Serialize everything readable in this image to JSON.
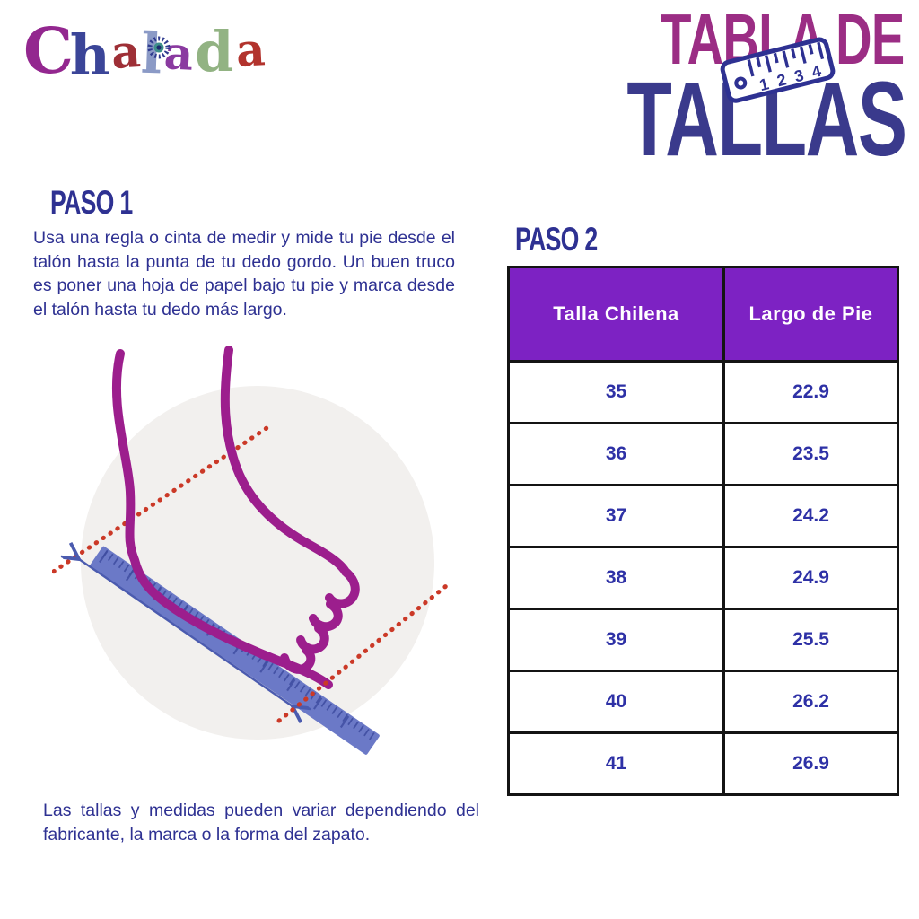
{
  "logo": {
    "name": "Chalada",
    "letters": [
      {
        "char": "C",
        "color": "#93278F"
      },
      {
        "char": "h",
        "color": "#3B4598"
      },
      {
        "char": "a",
        "color": "#9E2F36"
      },
      {
        "char": "l",
        "color": "#8B9AC6"
      },
      {
        "char": "a",
        "color": "#8A3AA0"
      },
      {
        "char": "d",
        "color": "#92B383"
      },
      {
        "char": "a",
        "color": "#B2332D"
      }
    ]
  },
  "title": {
    "line1": "TABLA DE",
    "line2": "TALLAS",
    "line1_color": "#9B2D84",
    "line2_color": "#3A3A8C",
    "ruler_icon": {
      "numbers": [
        "1",
        "2",
        "3",
        "4"
      ]
    }
  },
  "step1": {
    "heading": "PASO 1",
    "body": "Usa una regla o cinta de medir y mide tu pie desde el talón hasta la punta de tu dedo gordo. Un buen truco es poner una hoja de papel bajo tu pie y marca desde el talón hasta tu dedo más largo."
  },
  "step2": {
    "heading": "PASO 2"
  },
  "size_table": {
    "headers": [
      "Talla Chilena",
      "Largo de Pie"
    ],
    "rows": [
      [
        "35",
        "22.9"
      ],
      [
        "36",
        "23.5"
      ],
      [
        "37",
        "24.2"
      ],
      [
        "38",
        "24.9"
      ],
      [
        "39",
        "25.5"
      ],
      [
        "40",
        "26.2"
      ],
      [
        "41",
        "26.9"
      ]
    ],
    "header_bg": "#7D22C3",
    "header_text_color": "#FFFFFF",
    "cell_text_color": "#2E31A6",
    "border_color": "#141414"
  },
  "footnote": "Las tallas y medidas pueden variar dependiendo del fabricante, la marca o la forma del zapato.",
  "illustration": {
    "label": "foot-measurement",
    "foot_color": "#9C1E8D",
    "ruler_color": "#6B79C7",
    "tick_color": "#3E4CA0",
    "guide_color": "#CB3927",
    "arrow_color": "#4B5BAF",
    "circle_bg": "#F2F0EE"
  },
  "text_color": "#2E3192"
}
